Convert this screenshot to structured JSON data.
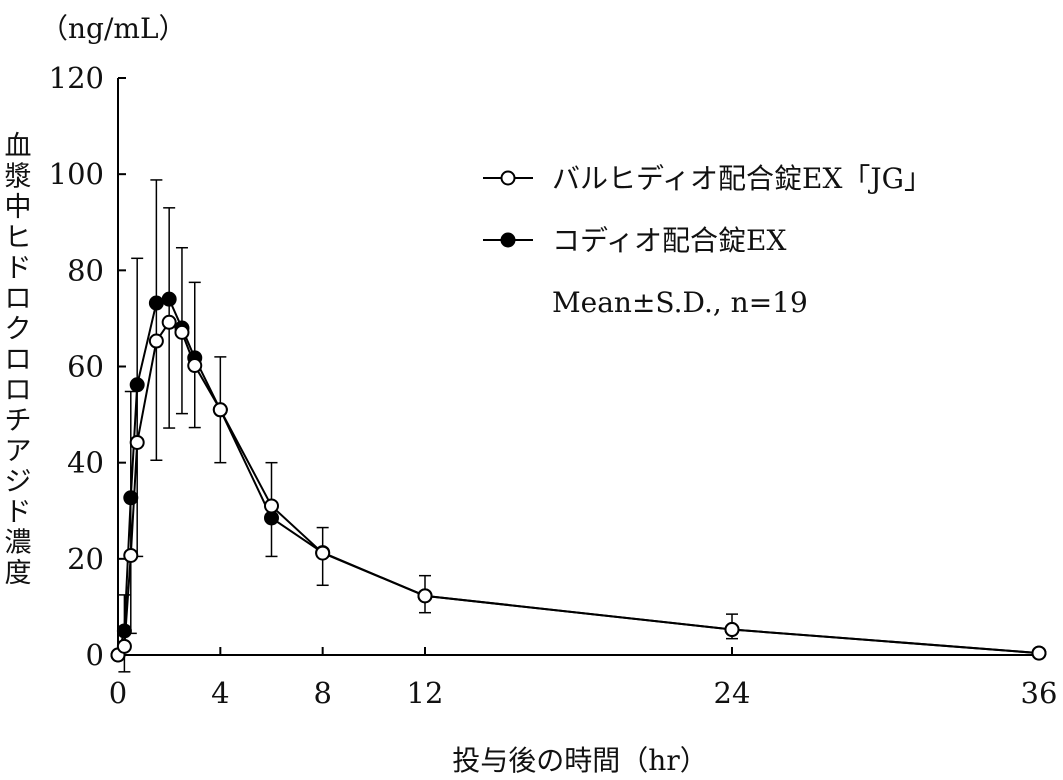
{
  "chart_data": {
    "type": "line",
    "unit_label": "（ng/mL）",
    "xlabel": "投与後の時間（hr）",
    "ylabel": "血漿中ヒドロクロロチアジド濃度",
    "xlim": [
      0,
      36
    ],
    "ylim": [
      0,
      120
    ],
    "x_ticks": [
      0,
      4,
      8,
      12,
      24,
      36
    ],
    "y_ticks": [
      0,
      20,
      40,
      60,
      80,
      100,
      120
    ],
    "grid": false,
    "legend_position": "top-right",
    "note": "Mean±S.D., n=19",
    "series": [
      {
        "name": "コディオ配合錠EX",
        "marker": "filled-circle",
        "color": "#000000",
        "x": [
          0,
          0.25,
          0.5,
          0.75,
          1.5,
          2,
          2.5,
          3,
          4,
          6,
          8,
          12,
          24,
          36
        ],
        "y": [
          0,
          5,
          32.7,
          56.2,
          73.2,
          74,
          68,
          61.8,
          51,
          28.5,
          21.3,
          12.3,
          5.3,
          0.4
        ],
        "err_upper": [
          0,
          12.5,
          54.8,
          82.5,
          98.8,
          93,
          84.7,
          77.5,
          62,
          40,
          26.5,
          16.5,
          8.5,
          0.4
        ],
        "err_lower": [
          0,
          3.5,
          20.5,
          36,
          40.5,
          47.2,
          50.2,
          47.3,
          40,
          20.5,
          14.5,
          8.8,
          3.4,
          0.4
        ]
      },
      {
        "name": "バルヒディオ配合錠EX「JG」",
        "marker": "open-circle",
        "color": "#000000",
        "x": [
          0,
          0.25,
          0.5,
          0.75,
          1.5,
          2,
          2.5,
          3,
          4,
          6,
          8,
          12,
          24,
          36
        ],
        "y": [
          0,
          1.8,
          20.7,
          44.2,
          65.3,
          69.2,
          67.1,
          60.2,
          51,
          31,
          21.2,
          12.3,
          5.3,
          0.4
        ],
        "err_upper": [
          0,
          12.5,
          54.8,
          82.5,
          98.8,
          93,
          84.7,
          77.5,
          62,
          40,
          26.5,
          16.5,
          8.5,
          0.4
        ],
        "err_lower": [
          0,
          -3.5,
          4.5,
          20.5,
          40.5,
          47.2,
          50.2,
          47.3,
          40,
          20.5,
          14.5,
          8.8,
          3.4,
          0.4
        ]
      }
    ]
  }
}
